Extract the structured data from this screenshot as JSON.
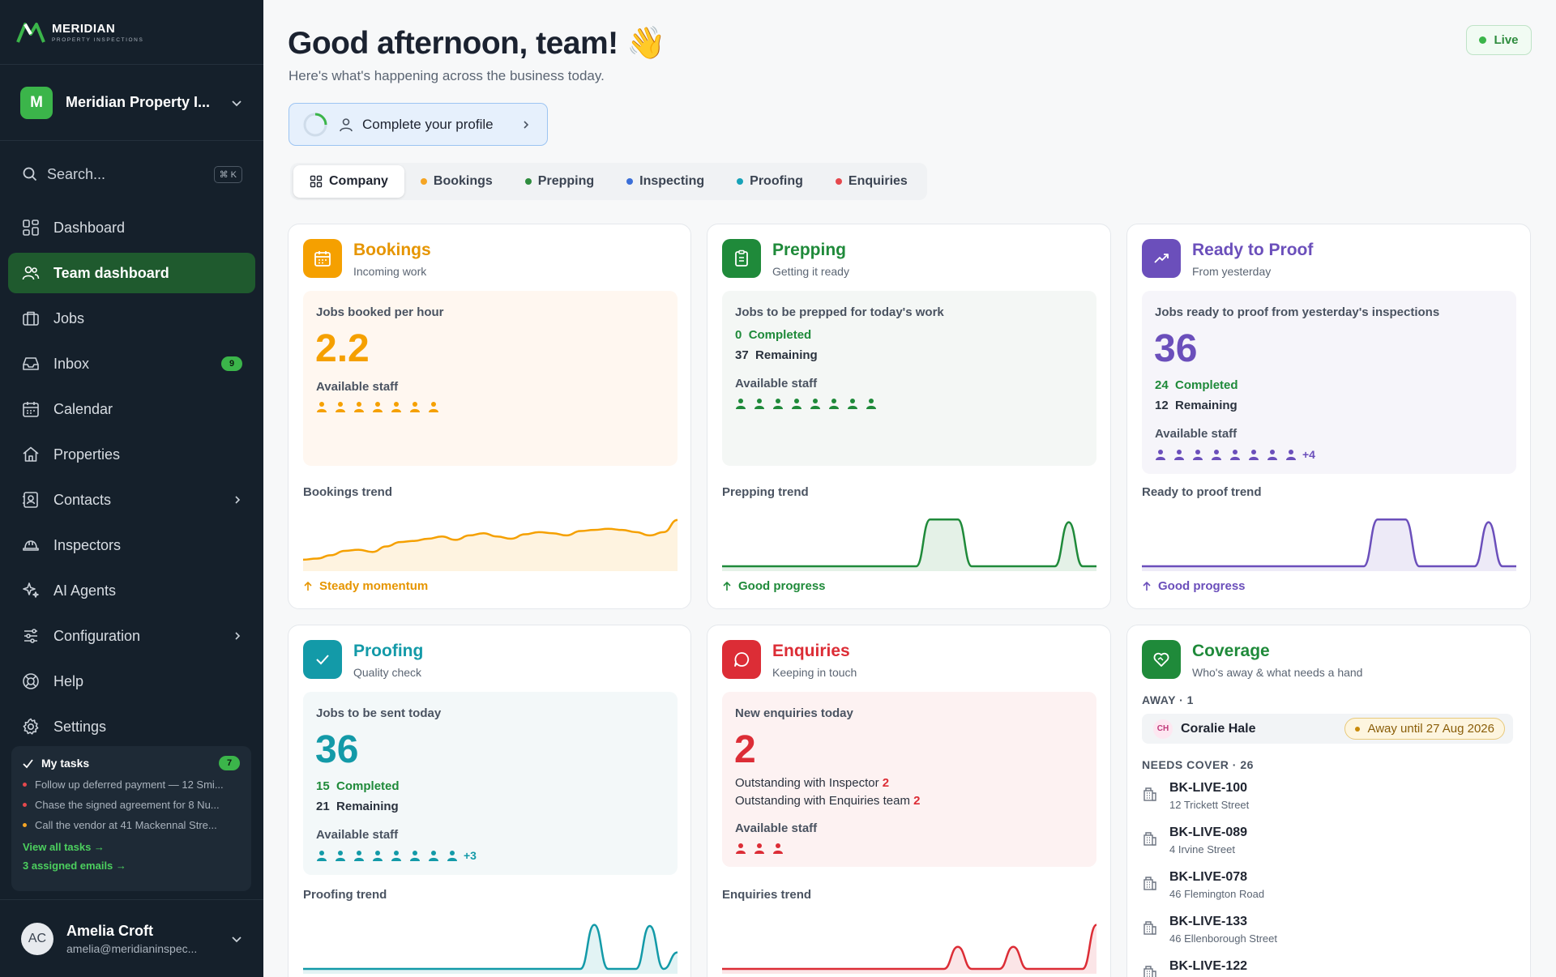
{
  "brand": {
    "name": "MERIDIAN",
    "tagline": "PROPERTY INSPECTIONS"
  },
  "workspace": {
    "initial": "M",
    "name": "Meridian Property I..."
  },
  "search": {
    "placeholder": "Search...",
    "shortcut": "⌘ K"
  },
  "nav": [
    {
      "label": "Dashboard",
      "icon": "dashboard-icon"
    },
    {
      "label": "Team dashboard",
      "icon": "team-icon",
      "active": true
    },
    {
      "label": "Jobs",
      "icon": "briefcase-icon"
    },
    {
      "label": "Inbox",
      "icon": "inbox-icon",
      "badge": "9"
    },
    {
      "label": "Calendar",
      "icon": "calendar-icon"
    },
    {
      "label": "Properties",
      "icon": "home-icon"
    },
    {
      "label": "Contacts",
      "icon": "contacts-icon",
      "chevron": true
    },
    {
      "label": "Inspectors",
      "icon": "hardhat-icon"
    },
    {
      "label": "AI Agents",
      "icon": "sparkles-icon"
    },
    {
      "label": "Configuration",
      "icon": "sliders-icon",
      "chevron": true
    },
    {
      "label": "Help",
      "icon": "lifebuoy-icon"
    },
    {
      "label": "Settings",
      "icon": "gear-icon"
    }
  ],
  "tasks": {
    "title": "My tasks",
    "count": "7",
    "items": [
      {
        "text": "Follow up deferred payment — 12 Smi...",
        "color": "#e5484d"
      },
      {
        "text": "Chase the signed agreement for 8 Nu...",
        "color": "#e5484d"
      },
      {
        "text": "Call the vendor at 41 Mackennal Stre...",
        "color": "#f5a524"
      }
    ],
    "view_all": "View all tasks →",
    "emails": "3 assigned emails →"
  },
  "user": {
    "initials": "AC",
    "name": "Amelia Croft",
    "email": "amelia@meridianinspec..."
  },
  "header": {
    "greeting": "Good afternoon, team! 👋",
    "subtitle": "Here's what's happening across the business today.",
    "live": "Live",
    "profile_cta": "Complete your profile"
  },
  "tabs": [
    {
      "label": "Company",
      "active": true
    },
    {
      "label": "Bookings",
      "color": "#f5a524"
    },
    {
      "label": "Prepping",
      "color": "#2e8c3e"
    },
    {
      "label": "Inspecting",
      "color": "#3b6fd8"
    },
    {
      "label": "Proofing",
      "color": "#17a2b8"
    },
    {
      "label": "Enquiries",
      "color": "#e5484d"
    }
  ],
  "cards": {
    "bookings": {
      "title": "Bookings",
      "subtitle": "Incoming work",
      "color": "#f5a000",
      "metric_label": "Jobs booked per hour",
      "metric": "2.2",
      "staff_label": "Available staff",
      "staff_count": 7,
      "trend_label": "Bookings trend",
      "trend_note": "Steady momentum",
      "trend": [
        12,
        14,
        20,
        28,
        30,
        26,
        36,
        44,
        46,
        50,
        54,
        48,
        56,
        60,
        54,
        50,
        58,
        62,
        60,
        56,
        64,
        66,
        68,
        66,
        62,
        56,
        62,
        84
      ]
    },
    "prepping": {
      "title": "Prepping",
      "subtitle": "Getting it ready",
      "color": "#1f8a3a",
      "metric_label": "Jobs to be prepped for today's work",
      "completed": "0",
      "completed_label": "Completed",
      "remaining": "37",
      "remaining_label": "Remaining",
      "staff_label": "Available staff",
      "staff_count": 8,
      "trend_label": "Prepping trend",
      "trend_note": "Good progress",
      "trend": [
        0,
        0,
        0,
        0,
        0,
        0,
        0,
        0,
        0,
        0,
        0,
        0,
        0,
        0,
        0,
        85,
        85,
        85,
        0,
        0,
        0,
        0,
        0,
        0,
        0,
        80,
        0,
        0
      ]
    },
    "proof": {
      "title": "Ready to Proof",
      "subtitle": "From yesterday",
      "color": "#6b4fbb",
      "metric_label": "Jobs ready to proof from yesterday's inspections",
      "metric": "36",
      "completed": "24",
      "completed_label": "Completed",
      "remaining": "12",
      "remaining_label": "Remaining",
      "staff_label": "Available staff",
      "staff_count": 8,
      "staff_more": "+4",
      "trend_label": "Ready to proof trend",
      "trend_note": "Good progress",
      "trend": [
        0,
        0,
        0,
        0,
        0,
        0,
        0,
        0,
        0,
        0,
        0,
        0,
        0,
        0,
        0,
        0,
        0,
        85,
        85,
        85,
        0,
        0,
        0,
        0,
        0,
        80,
        0,
        0
      ]
    },
    "proofing": {
      "title": "Proofing",
      "subtitle": "Quality check",
      "color": "#139aa8",
      "metric_label": "Jobs to be sent today",
      "metric": "36",
      "completed": "15",
      "completed_label": "Completed",
      "remaining": "21",
      "remaining_label": "Remaining",
      "staff_label": "Available staff",
      "staff_count": 8,
      "staff_more": "+3",
      "trend_label": "Proofing trend",
      "trend": [
        0,
        0,
        0,
        0,
        0,
        0,
        0,
        0,
        0,
        0,
        0,
        0,
        0,
        0,
        0,
        0,
        0,
        0,
        0,
        0,
        0,
        80,
        0,
        0,
        0,
        78,
        0,
        30
      ]
    },
    "enquiries": {
      "title": "Enquiries",
      "subtitle": "Keeping in touch",
      "color": "#dc2d36",
      "metric_label": "New enquiries today",
      "metric": "2",
      "inspector_label": "Outstanding with Inspector",
      "inspector_value": "2",
      "team_label": "Outstanding with Enquiries team",
      "team_value": "2",
      "staff_label": "Available staff",
      "staff_count": 3,
      "trend_label": "Enquiries trend",
      "trend": [
        0,
        0,
        0,
        0,
        0,
        0,
        0,
        0,
        0,
        0,
        0,
        0,
        0,
        0,
        0,
        0,
        0,
        40,
        0,
        0,
        0,
        40,
        0,
        0,
        0,
        0,
        0,
        80
      ]
    },
    "coverage": {
      "title": "Coverage",
      "subtitle": "Who's away & what needs a hand",
      "color": "#1f8a3a",
      "away_header": "AWAY · 1",
      "away": {
        "initials": "CH",
        "name": "Coralie Hale",
        "status": "Away until 27 Aug 2026"
      },
      "cover_header": "NEEDS COVER · 26",
      "cover": [
        {
          "id": "BK-LIVE-100",
          "addr": "12 Trickett Street"
        },
        {
          "id": "BK-LIVE-089",
          "addr": "4 Irvine Street"
        },
        {
          "id": "BK-LIVE-078",
          "addr": "46 Flemington Road"
        },
        {
          "id": "BK-LIVE-133",
          "addr": "46 Ellenborough Street"
        },
        {
          "id": "BK-LIVE-122",
          "addr": ""
        }
      ]
    }
  }
}
